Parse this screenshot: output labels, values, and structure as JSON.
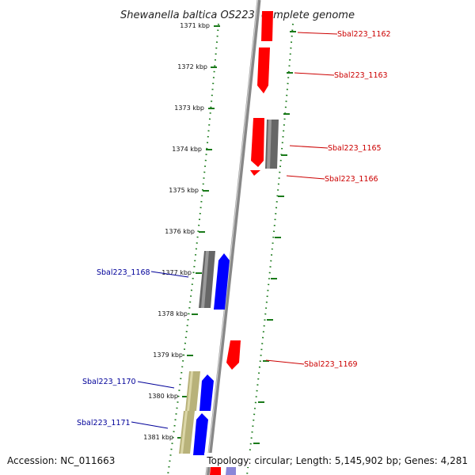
{
  "title": "Shewanella baltica OS223, complete genome",
  "accession": "Accession: NC_011663",
  "topology": "Topology: circular; Length: 5,145,902 bp; Genes: 4,281",
  "kbp_labels": [
    "1371 kbp",
    "1372 kbp",
    "1373 kbp",
    "1374 kbp",
    "1375 kbp",
    "1376 kbp",
    "1377 kbp",
    "1378 kbp",
    "1379 kbp",
    "1380 kbp",
    "1381 kbp"
  ],
  "genes": [
    {
      "id": "Sbal223_1162",
      "label": "Sbal223_1162",
      "strand": "+",
      "color": "#ff0000"
    },
    {
      "id": "Sbal223_1163",
      "label": "Sbal223_1163",
      "strand": "+",
      "color": "#ff0000"
    },
    {
      "id": "Sbal223_1165",
      "label": "Sbal223_1165",
      "strand": "+",
      "color": "#ff0000"
    },
    {
      "id": "Sbal223_1166",
      "label": "Sbal223_1166",
      "strand": "+",
      "color": "#ff0000"
    },
    {
      "id": "Sbal223_1168",
      "label": "Sbal223_1168",
      "strand": "-",
      "color": "#0000ff"
    },
    {
      "id": "Sbal223_1169",
      "label": "Sbal223_1169",
      "strand": "+",
      "color": "#ff0000"
    },
    {
      "id": "Sbal223_1170",
      "label": "Sbal223_1170",
      "strand": "-",
      "color": "#0000ff"
    },
    {
      "id": "Sbal223_1171",
      "label": "Sbal223_1171",
      "strand": "-",
      "color": "#0000ff"
    }
  ],
  "colors": {
    "forward_cds": "#ff0000",
    "reverse_cds": "#0000ff",
    "other_feature": "#666666",
    "rna_feature": "#b8b27a",
    "backbone": "#888888",
    "ruler": "#1a7a1a",
    "forward_label": "#cc0000",
    "reverse_label": "#000099"
  }
}
